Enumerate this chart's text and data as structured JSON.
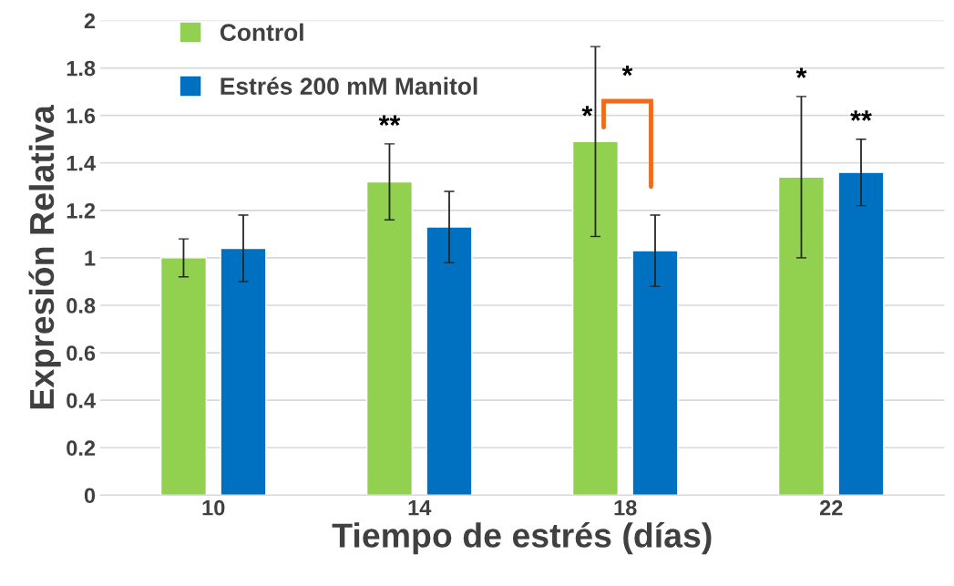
{
  "chart_data": {
    "type": "bar",
    "xlabel": "Tiempo de estrés (días)",
    "ylabel": "Expresión Relativa",
    "categories": [
      "10",
      "14",
      "18",
      "22"
    ],
    "series": [
      {
        "name": "Control",
        "color": "#92d050",
        "values": [
          1.0,
          1.32,
          1.49,
          1.34
        ],
        "errors": [
          0.08,
          0.16,
          0.4,
          0.34
        ]
      },
      {
        "name": "Estrés 200 mM Manitol",
        "color": "#0070c0",
        "values": [
          1.04,
          1.13,
          1.03,
          1.36
        ],
        "errors": [
          0.14,
          0.15,
          0.15,
          0.14
        ]
      }
    ],
    "ylim": [
      0,
      2
    ],
    "yticks": [
      0,
      0.2,
      0.4,
      0.6,
      0.8,
      1,
      1.2,
      1.4,
      1.6,
      1.8,
      2
    ],
    "grid": "y",
    "legend": "top left",
    "annotations": [
      "**",
      "*",
      "*",
      "*",
      "**"
    ]
  }
}
